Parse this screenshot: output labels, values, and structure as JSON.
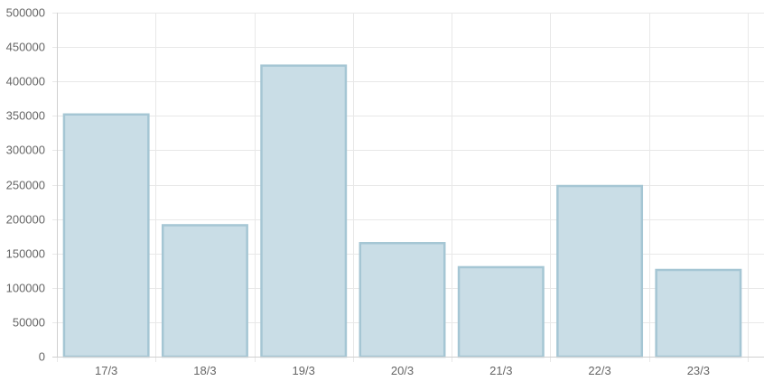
{
  "chart_data": {
    "type": "bar",
    "title": "",
    "xlabel": "",
    "ylabel": "",
    "categories": [
      "17/3",
      "18/3",
      "19/3",
      "20/3",
      "21/3",
      "22/3",
      "23/3"
    ],
    "values": [
      352000,
      191000,
      423000,
      165000,
      130000,
      248000,
      126000
    ],
    "ylim": [
      0,
      500000
    ],
    "yticks": [
      0,
      50000,
      100000,
      150000,
      200000,
      250000,
      300000,
      350000,
      400000,
      450000,
      500000
    ],
    "grid": true,
    "legend": "none",
    "colors": {
      "bar_fill": "#c9dde6",
      "bar_stroke": "#a5c6d4",
      "grid": "#e8e8e8",
      "axis": "#d0d0d0",
      "text": "#666666"
    }
  }
}
